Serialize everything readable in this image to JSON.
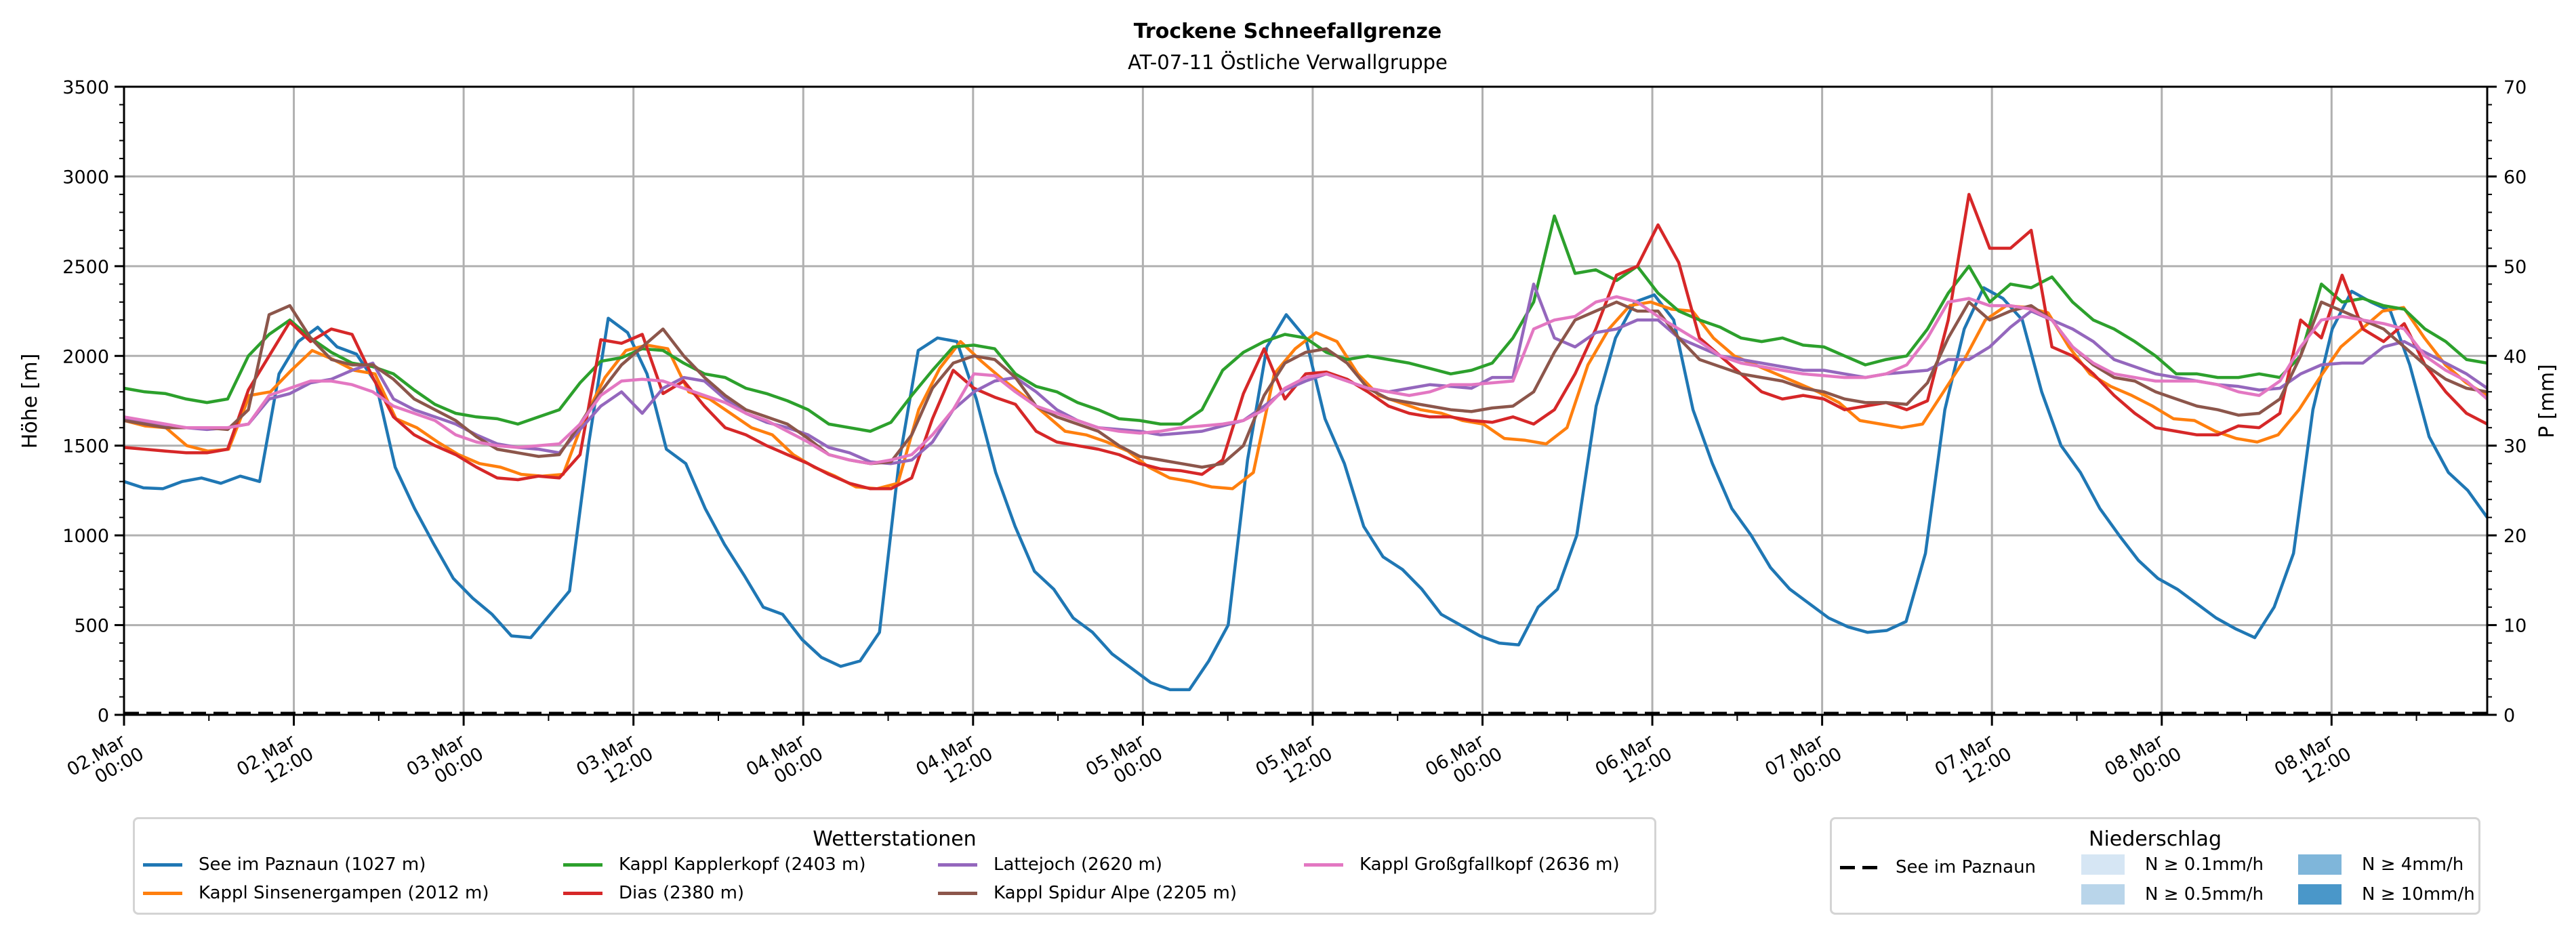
{
  "chart_data": {
    "type": "line",
    "title": "Trockene Schneefallgrenze",
    "subtitle": "AT-07-11 Östliche Verwallgruppe",
    "ylabel": "Höhe [m]",
    "ylabel_right": "P [mm]",
    "ylim": [
      0,
      3500
    ],
    "ylim_right": [
      0,
      70
    ],
    "yticks": [
      "0",
      "500",
      "1000",
      "1500",
      "2000",
      "2500",
      "3000",
      "3500"
    ],
    "yticks_right": [
      "0",
      "10",
      "20",
      "30",
      "40",
      "50",
      "60",
      "70"
    ],
    "x_unit": "hours since 02.Mar 00:00",
    "xlim": [
      0,
      167
    ],
    "xtick_hours": [
      0,
      12,
      24,
      36,
      48,
      60,
      72,
      84,
      96,
      108,
      120,
      132,
      144,
      156
    ],
    "xticks": [
      {
        "date": "02.Mar",
        "time": "00:00"
      },
      {
        "date": "02.Mar",
        "time": "12:00"
      },
      {
        "date": "03.Mar",
        "time": "00:00"
      },
      {
        "date": "03.Mar",
        "time": "12:00"
      },
      {
        "date": "04.Mar",
        "time": "00:00"
      },
      {
        "date": "04.Mar",
        "time": "12:00"
      },
      {
        "date": "05.Mar",
        "time": "00:00"
      },
      {
        "date": "05.Mar",
        "time": "12:00"
      },
      {
        "date": "06.Mar",
        "time": "00:00"
      },
      {
        "date": "06.Mar",
        "time": "12:00"
      },
      {
        "date": "07.Mar",
        "time": "00:00"
      },
      {
        "date": "07.Mar",
        "time": "12:00"
      },
      {
        "date": "08.Mar",
        "time": "00:00"
      },
      {
        "date": "08.Mar",
        "time": "12:00"
      }
    ],
    "grid": true,
    "x_step_hours": 2,
    "series": [
      {
        "name": "See im Paznaun (1027 m)",
        "color": "#1f77b4",
        "values": [
          1300,
          1265,
          1260,
          1300,
          1320,
          1290,
          1330,
          1300,
          1900,
          2080,
          2160,
          2050,
          2010,
          1850,
          1380,
          1150,
          950,
          760,
          650,
          560,
          440,
          430,
          560,
          690,
          1520,
          2210,
          2130,
          1900,
          1480,
          1400,
          1150,
          950,
          780,
          600,
          560,
          420,
          320,
          270,
          300,
          460,
          1400,
          2030,
          2100,
          2080,
          1760,
          1350,
          1050,
          800,
          700,
          540,
          460,
          340,
          260,
          180,
          140,
          140,
          300,
          500,
          1420,
          2050,
          2230,
          2100,
          1650,
          1400,
          1050,
          880,
          810,
          700,
          560,
          500,
          440,
          400,
          390,
          600,
          700,
          1000,
          1720,
          2100,
          2300,
          2340,
          2200,
          1700,
          1400,
          1150,
          1000,
          820,
          700,
          620,
          540,
          490,
          460,
          470,
          520,
          900,
          1700,
          2150,
          2380,
          2320,
          2200,
          1800,
          1500,
          1350,
          1150,
          1000,
          860,
          760,
          700,
          620,
          540,
          480,
          430,
          600,
          900,
          1700,
          2150,
          2360,
          2300,
          2250,
          1950,
          1550,
          1350,
          1250,
          1100
        ]
      },
      {
        "name": "Kappl Sinsenergampen (2012 m)",
        "color": "#ff7f0e",
        "values": [
          1640,
          1610,
          1600,
          1500,
          1470,
          1480,
          1780,
          1800,
          1920,
          2030,
          1980,
          1920,
          1900,
          1650,
          1600,
          1520,
          1450,
          1400,
          1380,
          1340,
          1330,
          1340,
          1650,
          1880,
          2030,
          2060,
          2040,
          1800,
          1760,
          1680,
          1600,
          1560,
          1450,
          1380,
          1330,
          1270,
          1260,
          1290,
          1700,
          1930,
          2080,
          1970,
          1870,
          1780,
          1680,
          1580,
          1560,
          1520,
          1470,
          1380,
          1320,
          1300,
          1270,
          1260,
          1350,
          1900,
          2040,
          2130,
          2080,
          1900,
          1780,
          1740,
          1700,
          1680,
          1640,
          1620,
          1540,
          1530,
          1510,
          1600,
          1950,
          2150,
          2280,
          2300,
          2260,
          2250,
          2100,
          2000,
          1950,
          1900,
          1850,
          1800,
          1740,
          1640,
          1620,
          1600,
          1620,
          1800,
          1980,
          2200,
          2280,
          2270,
          2240,
          2050,
          1900,
          1830,
          1780,
          1720,
          1650,
          1640,
          1580,
          1540,
          1520,
          1560,
          1700,
          1880,
          2050,
          2150,
          2250,
          2270,
          2100,
          1950,
          1850,
          1780
        ]
      },
      {
        "name": "Kappl Kapplerkopf (2403 m)",
        "color": "#2ca02c",
        "values": [
          1820,
          1800,
          1790,
          1760,
          1740,
          1760,
          2000,
          2120,
          2200,
          2100,
          2020,
          1960,
          1940,
          1900,
          1810,
          1730,
          1680,
          1660,
          1650,
          1620,
          1660,
          1700,
          1850,
          1970,
          1990,
          2040,
          2030,
          1960,
          1900,
          1880,
          1820,
          1790,
          1750,
          1700,
          1620,
          1600,
          1580,
          1630,
          1780,
          1920,
          2050,
          2060,
          2040,
          1900,
          1830,
          1800,
          1740,
          1700,
          1650,
          1640,
          1620,
          1620,
          1700,
          1920,
          2020,
          2080,
          2120,
          2100,
          2020,
          1980,
          2000,
          1980,
          1960,
          1930,
          1900,
          1920,
          1960,
          2100,
          2300,
          2780,
          2460,
          2480,
          2420,
          2500,
          2350,
          2250,
          2200,
          2160,
          2100,
          2080,
          2100,
          2060,
          2050,
          2000,
          1950,
          1980,
          2000,
          2150,
          2350,
          2500,
          2300,
          2400,
          2380,
          2440,
          2300,
          2200,
          2150,
          2080,
          2000,
          1900,
          1900,
          1880,
          1880,
          1900,
          1880,
          2000,
          2400,
          2300,
          2320,
          2280,
          2260,
          2150,
          2080,
          1980,
          1960
        ]
      },
      {
        "name": "Dias (2380 m)",
        "color": "#d62728",
        "values": [
          1490,
          1480,
          1470,
          1460,
          1460,
          1480,
          1810,
          2000,
          2190,
          2080,
          2150,
          2120,
          1880,
          1660,
          1560,
          1500,
          1450,
          1380,
          1320,
          1310,
          1330,
          1320,
          1450,
          2090,
          2070,
          2120,
          1790,
          1860,
          1720,
          1600,
          1560,
          1500,
          1450,
          1400,
          1340,
          1290,
          1260,
          1260,
          1320,
          1650,
          1920,
          1820,
          1770,
          1730,
          1580,
          1520,
          1500,
          1480,
          1450,
          1400,
          1370,
          1360,
          1340,
          1420,
          1790,
          2040,
          1760,
          1900,
          1910,
          1870,
          1800,
          1720,
          1680,
          1660,
          1660,
          1640,
          1630,
          1660,
          1620,
          1700,
          1900,
          2150,
          2450,
          2500,
          2730,
          2520,
          2100,
          2000,
          1900,
          1800,
          1760,
          1780,
          1760,
          1700,
          1720,
          1740,
          1700,
          1750,
          2200,
          2900,
          2600,
          2600,
          2700,
          2050,
          2000,
          1900,
          1780,
          1680,
          1600,
          1580,
          1560,
          1560,
          1610,
          1600,
          1680,
          2200,
          2100,
          2450,
          2150,
          2080,
          2180,
          1950,
          1800,
          1680,
          1620
        ]
      },
      {
        "name": "Lattejoch (2620 m)",
        "color": "#9467bd",
        "values": [
          1650,
          1630,
          1610,
          1600,
          1590,
          1600,
          1620,
          1760,
          1790,
          1850,
          1870,
          1920,
          1960,
          1760,
          1700,
          1660,
          1620,
          1560,
          1510,
          1490,
          1480,
          1460,
          1590,
          1720,
          1800,
          1680,
          1820,
          1880,
          1860,
          1760,
          1680,
          1630,
          1600,
          1560,
          1490,
          1460,
          1410,
          1400,
          1420,
          1520,
          1700,
          1800,
          1860,
          1880,
          1800,
          1700,
          1640,
          1600,
          1590,
          1580,
          1560,
          1570,
          1580,
          1610,
          1640,
          1720,
          1810,
          1860,
          1900,
          1860,
          1820,
          1800,
          1820,
          1840,
          1830,
          1820,
          1880,
          1880,
          2400,
          2100,
          2050,
          2130,
          2150,
          2200,
          2200,
          2100,
          2050,
          2000,
          1980,
          1960,
          1940,
          1920,
          1920,
          1900,
          1880,
          1900,
          1910,
          1920,
          1980,
          1980,
          2050,
          2160,
          2250,
          2200,
          2150,
          2080,
          1980,
          1940,
          1900,
          1880,
          1860,
          1840,
          1830,
          1810,
          1820,
          1900,
          1950,
          1960,
          1960,
          2050,
          2080,
          2020,
          1960,
          1900,
          1820
        ]
      },
      {
        "name": "Kappl Spidur Alpe (2205 m)",
        "color": "#8c564b",
        "values": [
          1640,
          1620,
          1600,
          1600,
          1600,
          1590,
          1700,
          2230,
          2280,
          2100,
          1980,
          1950,
          1950,
          1870,
          1760,
          1700,
          1640,
          1550,
          1480,
          1460,
          1440,
          1450,
          1620,
          1800,
          1950,
          2050,
          2150,
          2000,
          1880,
          1780,
          1700,
          1660,
          1620,
          1540,
          1450,
          1420,
          1400,
          1410,
          1560,
          1820,
          1960,
          2000,
          1980,
          1880,
          1720,
          1660,
          1620,
          1580,
          1500,
          1440,
          1420,
          1400,
          1380,
          1400,
          1500,
          1780,
          1960,
          2020,
          2040,
          1960,
          1820,
          1760,
          1740,
          1720,
          1700,
          1690,
          1710,
          1720,
          1800,
          2020,
          2200,
          2250,
          2300,
          2250,
          2250,
          2100,
          1980,
          1940,
          1900,
          1880,
          1860,
          1820,
          1800,
          1760,
          1740,
          1740,
          1730,
          1850,
          2100,
          2300,
          2200,
          2250,
          2280,
          2200,
          2050,
          1950,
          1880,
          1860,
          1800,
          1760,
          1720,
          1700,
          1670,
          1680,
          1760,
          2000,
          2300,
          2250,
          2200,
          2150,
          2050,
          1950,
          1870,
          1820,
          1800
        ]
      },
      {
        "name": "Kappl Großgfallkopf (2636 m)",
        "color": "#e377c2",
        "values": [
          1660,
          1640,
          1620,
          1600,
          1600,
          1600,
          1620,
          1780,
          1820,
          1860,
          1860,
          1840,
          1800,
          1720,
          1680,
          1640,
          1560,
          1520,
          1500,
          1490,
          1500,
          1510,
          1620,
          1780,
          1860,
          1870,
          1860,
          1820,
          1780,
          1740,
          1680,
          1640,
          1580,
          1520,
          1450,
          1420,
          1400,
          1420,
          1450,
          1560,
          1700,
          1900,
          1890,
          1800,
          1720,
          1680,
          1640,
          1600,
          1580,
          1570,
          1580,
          1600,
          1610,
          1620,
          1640,
          1700,
          1820,
          1880,
          1900,
          1860,
          1820,
          1800,
          1780,
          1800,
          1840,
          1840,
          1850,
          1860,
          2150,
          2200,
          2220,
          2300,
          2330,
          2300,
          2220,
          2150,
          2080,
          2000,
          1960,
          1940,
          1920,
          1900,
          1890,
          1880,
          1880,
          1900,
          1950,
          2100,
          2300,
          2320,
          2280,
          2280,
          2260,
          2200,
          2050,
          1960,
          1900,
          1880,
          1860,
          1860,
          1860,
          1840,
          1800,
          1780,
          1860,
          2050,
          2200,
          2220,
          2200,
          2180,
          2150,
          2000,
          1920,
          1860,
          1760
        ]
      }
    ],
    "precip_series": {
      "name": "See im Paznaun",
      "values_mm": 0
    }
  },
  "legend_stations": {
    "title": "Wetterstationen",
    "items": [
      {
        "label": "See im Paznaun (1027 m)",
        "color": "#1f77b4"
      },
      {
        "label": "Kappl Sinsenergampen (2012 m)",
        "color": "#ff7f0e"
      },
      {
        "label": "Kappl Kapplerkopf (2403 m)",
        "color": "#2ca02c"
      },
      {
        "label": "Dias (2380 m)",
        "color": "#d62728"
      },
      {
        "label": "Lattejoch (2620 m)",
        "color": "#9467bd"
      },
      {
        "label": "Kappl Spidur Alpe (2205 m)",
        "color": "#8c564b"
      },
      {
        "label": "Kappl Großgfallkopf (2636 m)",
        "color": "#e377c2"
      }
    ]
  },
  "legend_precip": {
    "title": "Niederschlag",
    "line_label": "See im Paznaun",
    "items": [
      {
        "label": "N ≥ 0.1mm/h",
        "color": "#d6e6f4"
      },
      {
        "label": "N ≥ 0.5mm/h",
        "color": "#b9d5ea"
      },
      {
        "label": "N ≥ 4mm/h",
        "color": "#7fb6da"
      },
      {
        "label": "N ≥ 10mm/h",
        "color": "#4a97c9"
      }
    ]
  }
}
